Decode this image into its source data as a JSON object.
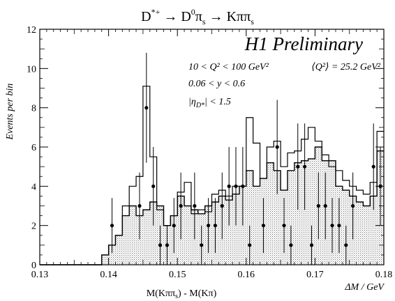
{
  "chart_data": {
    "type": "histogram",
    "title": {
      "base": "D",
      "sup1": "*+",
      "arrow1": " → D",
      "sup2": "0",
      "pi1": "π",
      "sub1": "s",
      "arrow2": " → Kππ",
      "sub2": "s"
    },
    "brand_label": "H1 Preliminary",
    "annotations": {
      "q2_range": "10 < Q² < 100 GeV²",
      "q2_mean": "⟨Q²⟩ = 25.2 GeV²",
      "y_range": "0.06 < y < 0.6",
      "eta_bar_open": "|",
      "eta_symbol": "η",
      "eta_sub": "D*",
      "eta_bar_close": "|",
      "eta_cut": " < 1.5"
    },
    "ylabel": "Events per bin",
    "xlabel_left": "M(Kππ",
    "xlabel_sub": "s",
    "xlabel_right": ") - M(Kπ)",
    "xlabel_unit": "ΔM / GeV",
    "xlim": [
      0.13,
      0.18
    ],
    "ylim": [
      0,
      12
    ],
    "x_ticks": [
      "0.13",
      "0.14",
      "0.15",
      "0.16",
      "0.17",
      "0.18"
    ],
    "y_ticks": [
      "0",
      "2",
      "4",
      "6",
      "8",
      "10",
      "12"
    ],
    "bin_width": 0.001,
    "bin_start": 0.139,
    "mc_total": [
      0.5,
      1.0,
      1.5,
      2.5,
      3.0,
      2.5,
      2.8,
      3.2,
      3.0,
      2.0,
      2.5,
      3.5,
      3.0,
      2.8,
      2.6,
      3.0,
      3.2,
      3.5,
      3.3,
      3.6,
      4.0,
      4.8,
      4.0,
      4.4,
      5.2,
      4.8,
      3.8,
      4.8,
      5.2,
      5.3,
      5.4,
      6.0,
      5.3,
      5.3,
      4.0,
      3.8,
      3.5,
      3.2,
      3.0,
      3.5,
      5.8
    ],
    "mc_signal_total": [
      0.5,
      1.0,
      1.5,
      3.0,
      4.0,
      4.5,
      9.1,
      5.5,
      2.8,
      2.0,
      2.5,
      3.7,
      4.2,
      2.6,
      2.8,
      2.7,
      3.6,
      3.8,
      3.5,
      4.0,
      4.0,
      7.5,
      6.2,
      4.4,
      6.0,
      6.3,
      5.0,
      5.7,
      5.8,
      6.4,
      7.0,
      6.3,
      5.6,
      5.0,
      4.8,
      4.3,
      4.0,
      3.8,
      3.6,
      4.2,
      6.8
    ],
    "data_points": [
      {
        "x": 0.1405,
        "y": 2,
        "err": 1.4
      },
      {
        "x": 0.1445,
        "y": 3,
        "err": 1.7
      },
      {
        "x": 0.1455,
        "y": 8,
        "err": 2.8
      },
      {
        "x": 0.1465,
        "y": 4,
        "err": 2.0
      },
      {
        "x": 0.1475,
        "y": 1,
        "err": 1.0
      },
      {
        "x": 0.1485,
        "y": 1,
        "err": 1.0
      },
      {
        "x": 0.1495,
        "y": 2,
        "err": 1.4
      },
      {
        "x": 0.1505,
        "y": 3,
        "err": 1.7
      },
      {
        "x": 0.1525,
        "y": 3,
        "err": 1.7
      },
      {
        "x": 0.1535,
        "y": 1,
        "err": 1.0
      },
      {
        "x": 0.1545,
        "y": 2,
        "err": 1.4
      },
      {
        "x": 0.1555,
        "y": 2,
        "err": 1.4
      },
      {
        "x": 0.1565,
        "y": 3,
        "err": 1.7
      },
      {
        "x": 0.1575,
        "y": 4,
        "err": 2.0
      },
      {
        "x": 0.1585,
        "y": 4,
        "err": 2.0
      },
      {
        "x": 0.1595,
        "y": 4,
        "err": 2.0
      },
      {
        "x": 0.1605,
        "y": 1,
        "err": 1.0
      },
      {
        "x": 0.1625,
        "y": 2,
        "err": 1.4
      },
      {
        "x": 0.1645,
        "y": 6,
        "err": 2.4
      },
      {
        "x": 0.1655,
        "y": 2,
        "err": 1.4
      },
      {
        "x": 0.1665,
        "y": 1,
        "err": 1.0
      },
      {
        "x": 0.1675,
        "y": 5,
        "err": 2.2
      },
      {
        "x": 0.1685,
        "y": 5,
        "err": 2.2
      },
      {
        "x": 0.1695,
        "y": 1,
        "err": 1.0
      },
      {
        "x": 0.1705,
        "y": 3,
        "err": 1.7
      },
      {
        "x": 0.1715,
        "y": 3,
        "err": 1.7
      },
      {
        "x": 0.1725,
        "y": 2,
        "err": 1.4
      },
      {
        "x": 0.1735,
        "y": 2,
        "err": 1.4
      },
      {
        "x": 0.1745,
        "y": 1,
        "err": 1.0
      },
      {
        "x": 0.1755,
        "y": 3,
        "err": 1.7
      },
      {
        "x": 0.1785,
        "y": 5,
        "err": 2.2
      },
      {
        "x": 0.1795,
        "y": 4,
        "err": 2.0
      }
    ],
    "colors": {
      "ink": "#000000",
      "shade": "#d4d4d4",
      "background": "#ffffff"
    }
  }
}
